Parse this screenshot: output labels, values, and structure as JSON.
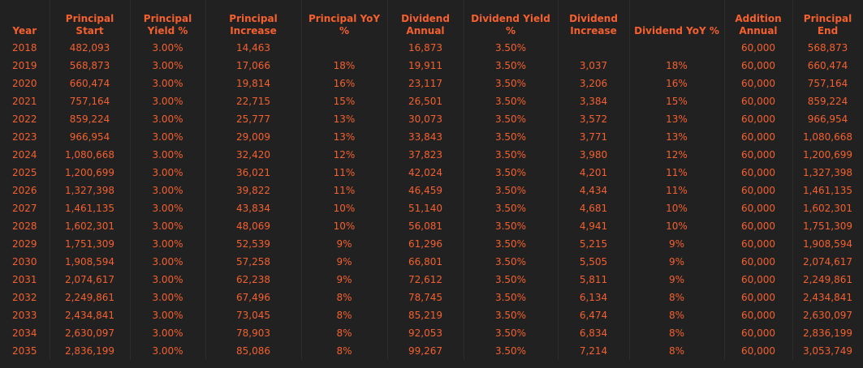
{
  "headers": {
    "year": "Year",
    "principal_start": "Principal Start",
    "principal_yield": "Principal Yield %",
    "principal_increase": "Principal Increase",
    "principal_yoy": "Principal YoY %",
    "dividend_annual": "Dividend Annual",
    "dividend_yield": "Dividend Yield %",
    "dividend_increase": "Dividend Increase",
    "dividend_yoy": "Dividend YoY %",
    "addition_annual": "Addition Annual",
    "principal_end": "Principal End"
  },
  "rows": [
    [
      "2018",
      "482,093",
      "3.00%",
      "14,463",
      "",
      "16,873",
      "3.50%",
      "",
      "",
      "60,000",
      "568,873"
    ],
    [
      "2019",
      "568,873",
      "3.00%",
      "17,066",
      "18%",
      "19,911",
      "3.50%",
      "3,037",
      "18%",
      "60,000",
      "660,474"
    ],
    [
      "2020",
      "660,474",
      "3.00%",
      "19,814",
      "16%",
      "23,117",
      "3.50%",
      "3,206",
      "16%",
      "60,000",
      "757,164"
    ],
    [
      "2021",
      "757,164",
      "3.00%",
      "22,715",
      "15%",
      "26,501",
      "3.50%",
      "3,384",
      "15%",
      "60,000",
      "859,224"
    ],
    [
      "2022",
      "859,224",
      "3.00%",
      "25,777",
      "13%",
      "30,073",
      "3.50%",
      "3,572",
      "13%",
      "60,000",
      "966,954"
    ],
    [
      "2023",
      "966,954",
      "3.00%",
      "29,009",
      "13%",
      "33,843",
      "3.50%",
      "3,771",
      "13%",
      "60,000",
      "1,080,668"
    ],
    [
      "2024",
      "1,080,668",
      "3.00%",
      "32,420",
      "12%",
      "37,823",
      "3.50%",
      "3,980",
      "12%",
      "60,000",
      "1,200,699"
    ],
    [
      "2025",
      "1,200,699",
      "3.00%",
      "36,021",
      "11%",
      "42,024",
      "3.50%",
      "4,201",
      "11%",
      "60,000",
      "1,327,398"
    ],
    [
      "2026",
      "1,327,398",
      "3.00%",
      "39,822",
      "11%",
      "46,459",
      "3.50%",
      "4,434",
      "11%",
      "60,000",
      "1,461,135"
    ],
    [
      "2027",
      "1,461,135",
      "3.00%",
      "43,834",
      "10%",
      "51,140",
      "3.50%",
      "4,681",
      "10%",
      "60,000",
      "1,602,301"
    ],
    [
      "2028",
      "1,602,301",
      "3.00%",
      "48,069",
      "10%",
      "56,081",
      "3.50%",
      "4,941",
      "10%",
      "60,000",
      "1,751,309"
    ],
    [
      "2029",
      "1,751,309",
      "3.00%",
      "52,539",
      "9%",
      "61,296",
      "3.50%",
      "5,215",
      "9%",
      "60,000",
      "1,908,594"
    ],
    [
      "2030",
      "1,908,594",
      "3.00%",
      "57,258",
      "9%",
      "66,801",
      "3.50%",
      "5,505",
      "9%",
      "60,000",
      "2,074,617"
    ],
    [
      "2031",
      "2,074,617",
      "3.00%",
      "62,238",
      "9%",
      "72,612",
      "3.50%",
      "5,811",
      "9%",
      "60,000",
      "2,249,861"
    ],
    [
      "2032",
      "2,249,861",
      "3.00%",
      "67,496",
      "8%",
      "78,745",
      "3.50%",
      "6,134",
      "8%",
      "60,000",
      "2,434,841"
    ],
    [
      "2033",
      "2,434,841",
      "3.00%",
      "73,045",
      "8%",
      "85,219",
      "3.50%",
      "6,474",
      "8%",
      "60,000",
      "2,630,097"
    ],
    [
      "2034",
      "2,630,097",
      "3.00%",
      "78,903",
      "8%",
      "92,053",
      "3.50%",
      "6,834",
      "8%",
      "60,000",
      "2,836,199"
    ],
    [
      "2035",
      "2,836,199",
      "3.00%",
      "85,086",
      "8%",
      "99,267",
      "3.50%",
      "7,214",
      "8%",
      "60,000",
      "3,053,749"
    ]
  ],
  "colors": {
    "background": "#212121",
    "text": "#f4602e"
  }
}
